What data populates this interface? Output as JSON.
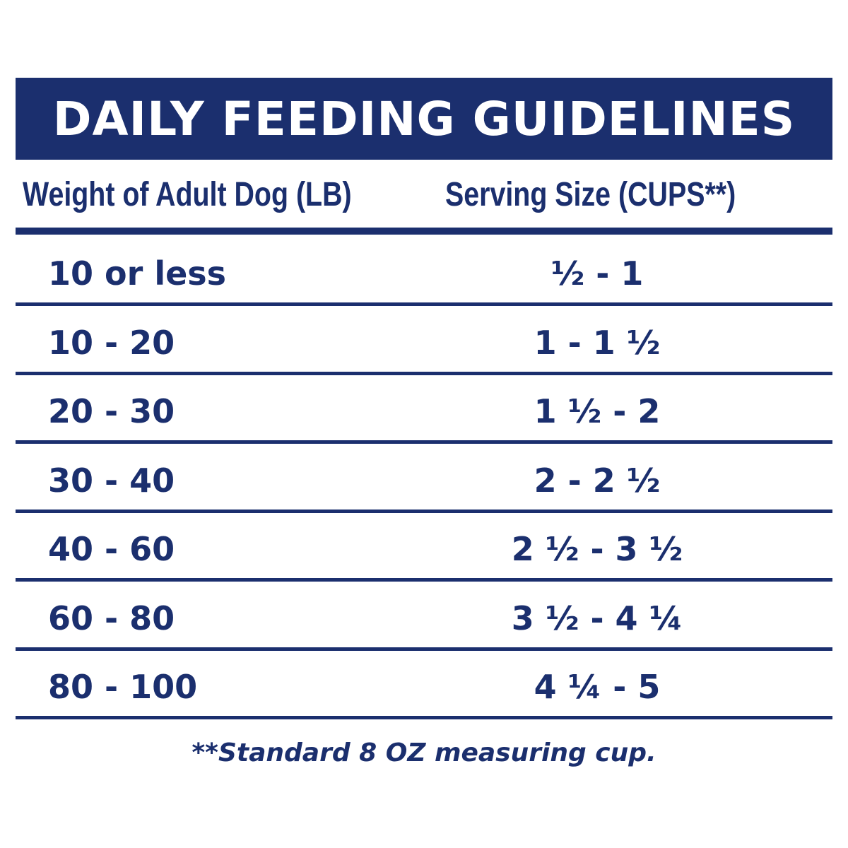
{
  "title": "DAILY FEEDING GUIDELINES",
  "table": {
    "headers": [
      "Weight of Adult Dog (LB)",
      "Serving Size (CUPS**)"
    ],
    "rows": [
      [
        "10 or less",
        "½ - 1"
      ],
      [
        "10 - 20",
        "1 - 1 ½"
      ],
      [
        "20 - 30",
        "1 ½ - 2"
      ],
      [
        "30 - 40",
        "2 - 2 ½"
      ],
      [
        "40 - 60",
        "2 ½ - 3 ½"
      ],
      [
        "60 - 80",
        "3 ½ - 4 ¼"
      ],
      [
        "80 - 100",
        "4 ¼ - 5"
      ]
    ]
  },
  "footnote": "**Standard 8 OZ measuring cup."
}
